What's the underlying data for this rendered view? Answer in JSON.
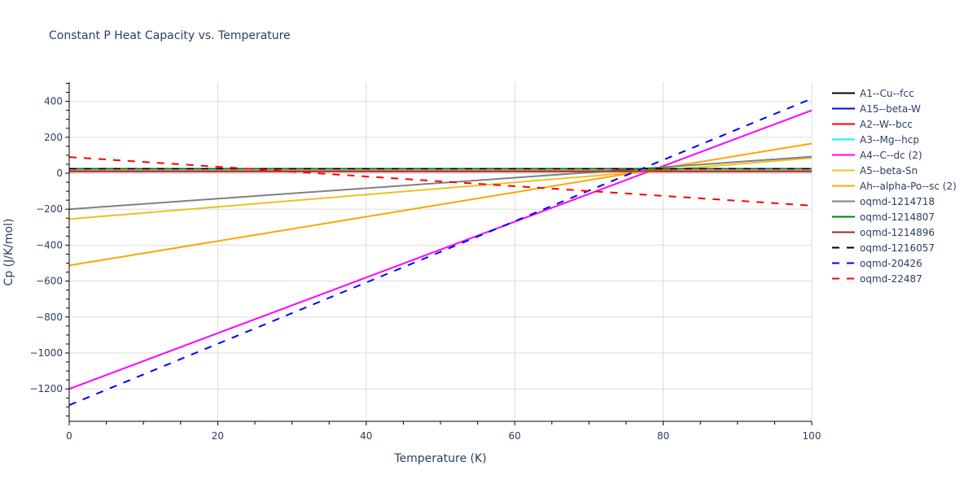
{
  "chart_data": {
    "type": "line",
    "title": "Constant P Heat Capacity vs. Temperature",
    "xlabel": "Temperature (K)",
    "ylabel": "Cp (J/K/mol)",
    "xlim": [
      0,
      100
    ],
    "ylim": [
      -1380,
      510
    ],
    "x_ticks": [
      0,
      20,
      40,
      60,
      80,
      100
    ],
    "y_ticks": [
      400,
      200,
      0,
      -200,
      -400,
      -600,
      -800,
      -1000,
      -1200
    ],
    "grid": true,
    "legend_position": "right",
    "series": [
      {
        "name": "A1--Cu--fcc",
        "color": "#000000",
        "dash": false,
        "x": [
          0,
          100
        ],
        "y": [
          25,
          25
        ]
      },
      {
        "name": "A15--beta-W",
        "color": "#0000ff",
        "dash": false,
        "x": [
          0,
          100
        ],
        "y": [
          25,
          25
        ]
      },
      {
        "name": "A2--W--bcc",
        "color": "#ff0000",
        "dash": false,
        "x": [
          0,
          100
        ],
        "y": [
          10,
          10
        ]
      },
      {
        "name": "A3--Mg--hcp",
        "color": "#00ffff",
        "dash": false,
        "x": [
          0,
          100
        ],
        "y": [
          25,
          25
        ]
      },
      {
        "name": "A4--C--dc (2)",
        "color": "#ff00ff",
        "dash": false,
        "x": [
          0,
          100
        ],
        "y": [
          -1200,
          350
        ]
      },
      {
        "name": "A5--beta-Sn",
        "color": "#f0c020",
        "dash": false,
        "x": [
          0,
          100
        ],
        "y": [
          -255,
          85
        ]
      },
      {
        "name": "Ah--alpha-Po--sc (2)",
        "color": "#ffa500",
        "dash": false,
        "x": [
          0,
          100
        ],
        "y": [
          -513,
          165
        ]
      },
      {
        "name": "oqmd-1214718",
        "color": "#808080",
        "dash": false,
        "x": [
          0,
          100
        ],
        "y": [
          -200,
          92
        ]
      },
      {
        "name": "oqmd-1214807",
        "color": "#008000",
        "dash": false,
        "x": [
          0,
          100
        ],
        "y": [
          25,
          25
        ]
      },
      {
        "name": "oqmd-1214896",
        "color": "#a52a2a",
        "dash": false,
        "x": [
          0,
          100
        ],
        "y": [
          12,
          12
        ]
      },
      {
        "name": "oqmd-1216057",
        "color": "#000000",
        "dash": true,
        "x": [
          0,
          100
        ],
        "y": [
          25,
          25
        ]
      },
      {
        "name": "oqmd-20426",
        "color": "#0000ff",
        "dash": true,
        "x": [
          0,
          100
        ],
        "y": [
          -1290,
          415
        ]
      },
      {
        "name": "oqmd-22487",
        "color": "#ff0000",
        "dash": true,
        "x": [
          0,
          100
        ],
        "y": [
          90,
          -180
        ]
      }
    ]
  }
}
